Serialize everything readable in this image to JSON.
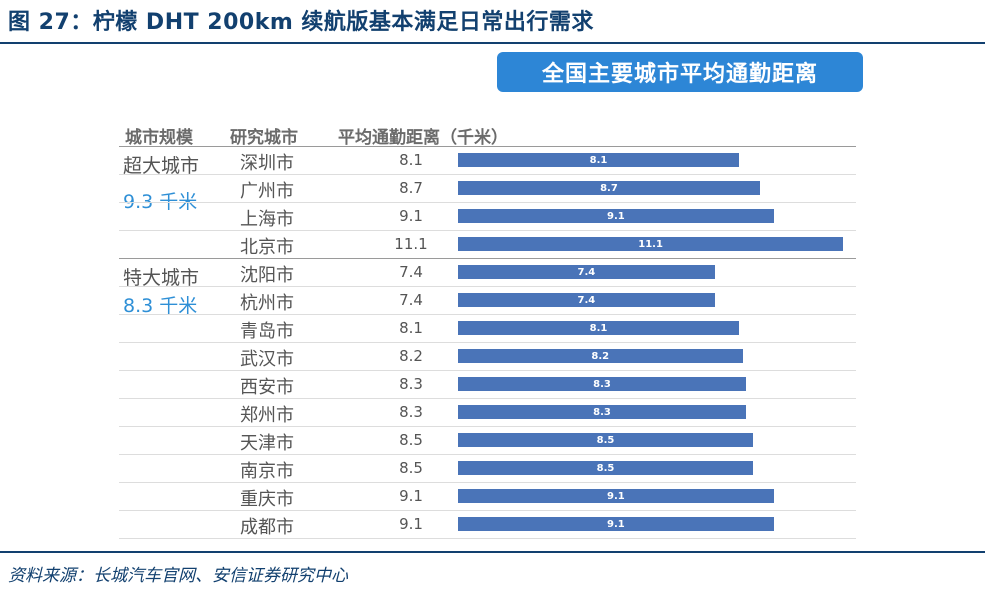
{
  "figure_title": "图 27：柠檬 DHT 200km 续航版基本满足日常出行需求",
  "source": "资料来源：长城汽车官网、安信证券研究中心",
  "chart_data": {
    "type": "bar",
    "orientation": "horizontal",
    "title": "全国主要城市平均通勤距离",
    "column_headers": [
      "城市规模",
      "研究城市",
      "平均通勤距离（千米）"
    ],
    "groups": [
      {
        "name": "超大城市",
        "average": "9.3 千米",
        "cities": [
          "深圳市",
          "广州市",
          "上海市",
          "北京市"
        ]
      },
      {
        "name": "特大城市",
        "average": "8.3 千米",
        "cities": [
          "沈阳市",
          "杭州市",
          "青岛市",
          "武汉市",
          "西安市",
          "郑州市",
          "天津市",
          "南京市",
          "重庆市",
          "成都市"
        ]
      }
    ],
    "categories": [
      "深圳市",
      "广州市",
      "上海市",
      "北京市",
      "沈阳市",
      "杭州市",
      "青岛市",
      "武汉市",
      "西安市",
      "郑州市",
      "天津市",
      "南京市",
      "重庆市",
      "成都市"
    ],
    "values": [
      8.1,
      8.7,
      9.1,
      11.1,
      7.4,
      7.4,
      8.1,
      8.2,
      8.3,
      8.3,
      8.5,
      8.5,
      9.1,
      9.1
    ],
    "value_labels": [
      "8.1",
      "8.7",
      "9.1",
      "11.1",
      "7.4",
      "7.4",
      "8.1",
      "8.2",
      "8.3",
      "8.3",
      "8.5",
      "8.5",
      "9.1",
      "9.1"
    ],
    "bar_color": "#4a74b8",
    "grid": false
  }
}
